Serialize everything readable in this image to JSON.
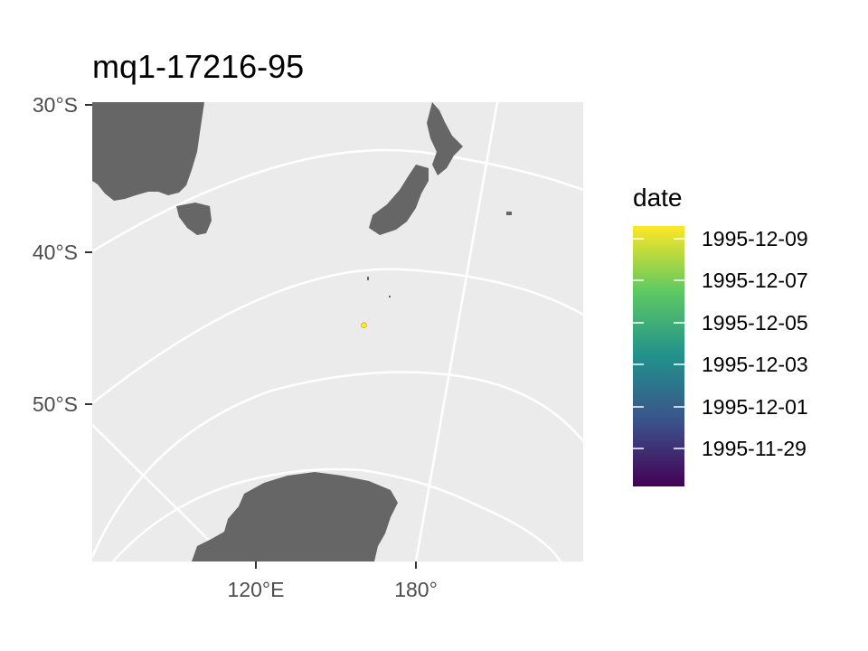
{
  "title": "mq1-17216-95",
  "axes": {
    "y_ticks": [
      "30°S",
      "40°S",
      "50°S"
    ],
    "x_ticks": [
      "120°E",
      "180°"
    ]
  },
  "legend": {
    "title": "date",
    "labels": [
      "1995-12-09",
      "1995-12-07",
      "1995-12-05",
      "1995-12-03",
      "1995-12-01",
      "1995-11-29"
    ],
    "colormap": [
      "#440154",
      "#3b528b",
      "#21918c",
      "#5ec962",
      "#fde725"
    ]
  },
  "map": {
    "panel_color": "#ebebeb",
    "land_color": "#666666",
    "grid_color": "#ffffff",
    "point_color": "#fde725"
  },
  "track": {
    "points": [
      {
        "lon": 160.5,
        "lat": -44.0,
        "date": "1995-12-09"
      }
    ]
  }
}
